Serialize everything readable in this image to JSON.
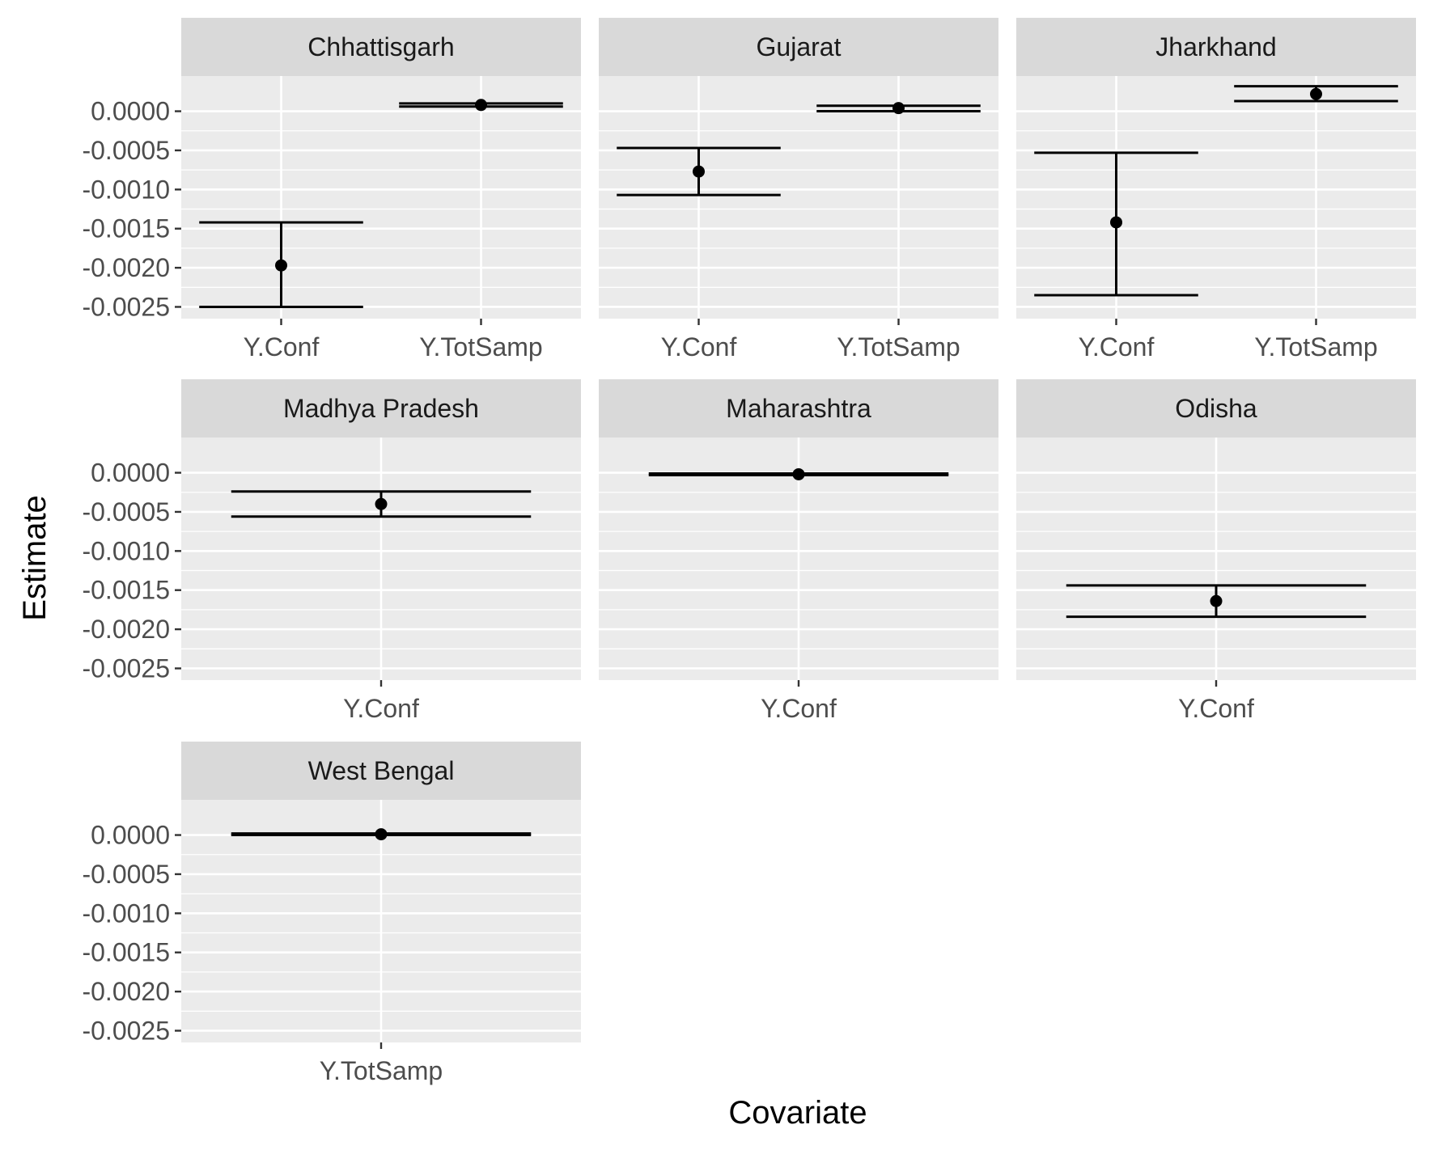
{
  "chart_data": {
    "type": "errorbar",
    "xlabel": "Covariate",
    "ylabel": "Estimate",
    "ylim": [
      -0.00265,
      0.00045
    ],
    "y_ticks": [
      0,
      -0.0005,
      -0.001,
      -0.0015,
      -0.002,
      -0.0025
    ],
    "y_tick_labels": [
      "0.0000",
      "-0.0005",
      "-0.0010",
      "-0.0015",
      "-0.0020",
      "-0.0025"
    ],
    "grid": true,
    "facets": [
      {
        "name": "Chhattisgarh",
        "categories": [
          "Y.Conf",
          "Y.TotSamp"
        ],
        "estimates": [
          -0.00197,
          8e-05
        ],
        "lower": [
          -0.0025,
          6e-05
        ],
        "upper": [
          -0.00142,
          0.0001
        ]
      },
      {
        "name": "Gujarat",
        "categories": [
          "Y.Conf",
          "Y.TotSamp"
        ],
        "estimates": [
          -0.00077,
          4e-05
        ],
        "lower": [
          -0.00107,
          0.0
        ],
        "upper": [
          -0.00047,
          7e-05
        ]
      },
      {
        "name": "Jharkhand",
        "categories": [
          "Y.Conf",
          "Y.TotSamp"
        ],
        "estimates": [
          -0.00142,
          0.00022
        ],
        "lower": [
          -0.00235,
          0.00013
        ],
        "upper": [
          -0.00053,
          0.00032
        ]
      },
      {
        "name": "Madhya Pradesh",
        "categories": [
          "Y.Conf"
        ],
        "estimates": [
          -0.0004
        ],
        "lower": [
          -0.00056
        ],
        "upper": [
          -0.00024
        ]
      },
      {
        "name": "Maharashtra",
        "categories": [
          "Y.Conf"
        ],
        "estimates": [
          -2e-05
        ],
        "lower": [
          -3e-05
        ],
        "upper": [
          -1e-05
        ]
      },
      {
        "name": "Odisha",
        "categories": [
          "Y.Conf"
        ],
        "estimates": [
          -0.00164
        ],
        "lower": [
          -0.00184
        ],
        "upper": [
          -0.00144
        ]
      },
      {
        "name": "West Bengal",
        "categories": [
          "Y.TotSamp"
        ],
        "estimates": [
          1e-05
        ],
        "lower": [
          0.0
        ],
        "upper": [
          2e-05
        ]
      }
    ]
  }
}
